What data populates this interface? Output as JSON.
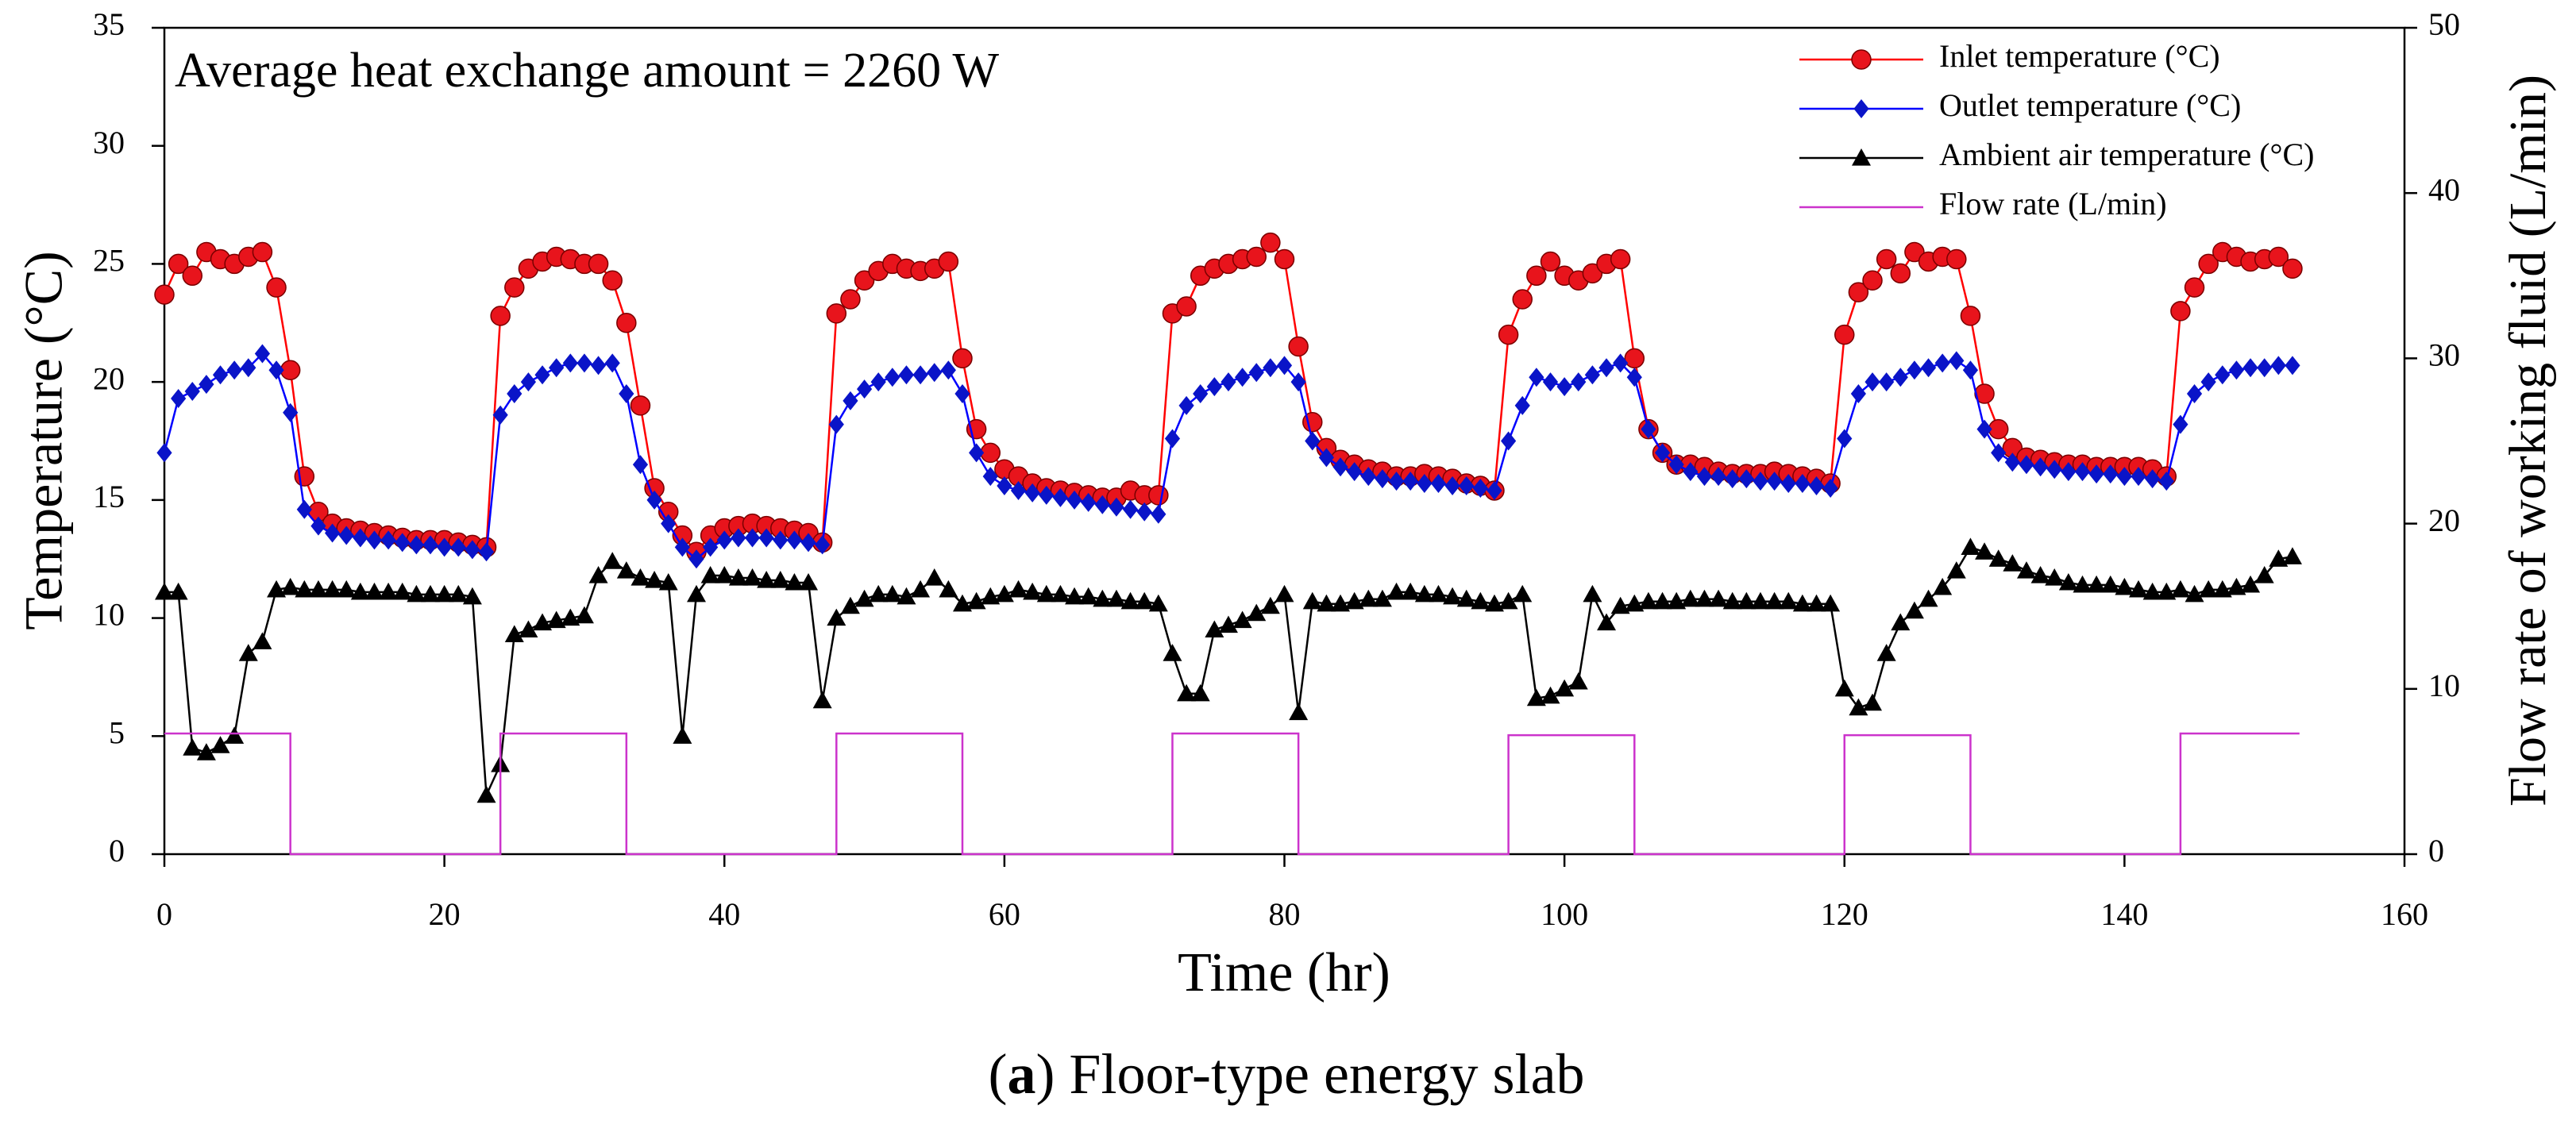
{
  "chart_data": {
    "type": "line",
    "annotation": "Average heat exchange amount = 2260 W",
    "x_label": "Time (hr)",
    "y_label": "Temperature (°C)",
    "y2_label": "Flow rate of working fluid (L/min)",
    "caption": [
      "(",
      "a",
      ") Floor-type energy slab"
    ],
    "xlim": [
      0,
      160
    ],
    "xticks": [
      0,
      20,
      40,
      60,
      80,
      100,
      120,
      140,
      160
    ],
    "ylim": [
      0,
      35
    ],
    "yticks": [
      0,
      5,
      10,
      15,
      20,
      25,
      30,
      35
    ],
    "y2lim": [
      0,
      50
    ],
    "y2ticks": [
      0,
      10,
      20,
      30,
      40,
      50
    ],
    "legend": "upper right",
    "x": [
      0,
      1,
      2,
      3,
      4,
      5,
      6,
      7,
      8,
      9,
      10,
      11,
      12,
      13,
      14,
      15,
      16,
      17,
      18,
      19,
      20,
      21,
      22,
      23,
      24,
      25,
      26,
      27,
      28,
      29,
      30,
      31,
      32,
      33,
      34,
      35,
      36,
      37,
      38,
      39,
      40,
      41,
      42,
      43,
      44,
      45,
      46,
      47,
      48,
      49,
      50,
      51,
      52,
      53,
      54,
      55,
      56,
      57,
      58,
      59,
      60,
      61,
      62,
      63,
      64,
      65,
      66,
      67,
      68,
      69,
      70,
      71,
      72,
      73,
      74,
      75,
      76,
      77,
      78,
      79,
      80,
      81,
      82,
      83,
      84,
      85,
      86,
      87,
      88,
      89,
      90,
      91,
      92,
      93,
      94,
      95,
      96,
      97,
      98,
      99,
      100,
      101,
      102,
      103,
      104,
      105,
      106,
      107,
      108,
      109,
      110,
      111,
      112,
      113,
      114,
      115,
      116,
      117,
      118,
      119,
      120,
      121,
      122,
      123,
      124,
      125,
      126,
      127,
      128,
      129,
      130,
      131,
      132,
      133,
      134,
      135,
      136,
      137,
      138,
      139,
      140,
      141,
      142,
      143,
      144,
      145,
      146,
      147,
      148,
      149,
      150,
      151,
      152
    ],
    "series": [
      {
        "name": "Inlet temperature (°C)",
        "color": "#ff0000",
        "marker": "circle",
        "marker_color": "#e8141c",
        "values": [
          23.7,
          25,
          24.5,
          25.5,
          25.2,
          25,
          25.3,
          25.5,
          24,
          20.5,
          16,
          14.5,
          14,
          13.8,
          13.7,
          13.6,
          13.5,
          13.4,
          13.3,
          13.3,
          13.3,
          13.2,
          13.1,
          13.0,
          22.8,
          24,
          24.8,
          25.1,
          25.3,
          25.2,
          25,
          25,
          24.3,
          22.5,
          19,
          15.5,
          14.5,
          13.5,
          12.8,
          13.5,
          13.8,
          13.9,
          14,
          13.9,
          13.8,
          13.7,
          13.6,
          13.2,
          22.9,
          23.5,
          24.3,
          24.7,
          25,
          24.8,
          24.7,
          24.8,
          25.1,
          21,
          18,
          17,
          16.3,
          16,
          15.7,
          15.5,
          15.4,
          15.3,
          15.2,
          15.1,
          15.1,
          15.4,
          15.2,
          15.2,
          22.9,
          23.2,
          24.5,
          24.8,
          25,
          25.2,
          25.3,
          25.9,
          25.2,
          21.5,
          18.3,
          17.2,
          16.7,
          16.5,
          16.3,
          16.2,
          16,
          16,
          16.1,
          16,
          15.9,
          15.7,
          15.6,
          15.4,
          22,
          23.5,
          24.5,
          25.1,
          24.5,
          24.3,
          24.6,
          25,
          25.2,
          21,
          18,
          17,
          16.5,
          16.5,
          16.4,
          16.2,
          16.1,
          16.1,
          16.1,
          16.2,
          16.1,
          16,
          15.9,
          15.7,
          22,
          23.8,
          24.3,
          25.2,
          24.6,
          25.5,
          25.1,
          25.3,
          25.2,
          22.8,
          19.5,
          18,
          17.2,
          16.8,
          16.7,
          16.6,
          16.5,
          16.5,
          16.4,
          16.4,
          16.4,
          16.4,
          16.3,
          16,
          23,
          24,
          25,
          25.5,
          25.3,
          25.1,
          25.2,
          25.3,
          24.8
        ]
      },
      {
        "name": "Outlet temperature (°C)",
        "color": "#0000ff",
        "marker": "diamond",
        "marker_color": "#0a14c8",
        "values": [
          17,
          19.3,
          19.6,
          19.9,
          20.3,
          20.5,
          20.6,
          21.2,
          20.5,
          18.7,
          14.6,
          13.9,
          13.6,
          13.5,
          13.4,
          13.3,
          13.3,
          13.2,
          13.1,
          13.1,
          13.0,
          13.0,
          12.9,
          12.8,
          18.6,
          19.5,
          20,
          20.3,
          20.6,
          20.8,
          20.8,
          20.7,
          20.8,
          19.5,
          16.5,
          15,
          14,
          13,
          12.5,
          13,
          13.3,
          13.4,
          13.4,
          13.4,
          13.3,
          13.3,
          13.2,
          13.1,
          18.2,
          19.2,
          19.7,
          20,
          20.2,
          20.3,
          20.3,
          20.4,
          20.5,
          19.5,
          17,
          16,
          15.6,
          15.4,
          15.3,
          15.2,
          15.1,
          15,
          14.9,
          14.8,
          14.7,
          14.6,
          14.5,
          14.4,
          17.6,
          19,
          19.5,
          19.8,
          20,
          20.2,
          20.4,
          20.6,
          20.7,
          20,
          17.5,
          16.8,
          16.4,
          16.2,
          16,
          15.9,
          15.8,
          15.8,
          15.7,
          15.7,
          15.6,
          15.6,
          15.5,
          15.4,
          17.5,
          19,
          20.2,
          20,
          19.8,
          20,
          20.3,
          20.6,
          20.8,
          20.2,
          18,
          17,
          16.5,
          16.2,
          16,
          16,
          15.9,
          15.9,
          15.8,
          15.8,
          15.7,
          15.7,
          15.6,
          15.5,
          17.6,
          19.5,
          20,
          20,
          20.2,
          20.5,
          20.6,
          20.8,
          20.9,
          20.5,
          18,
          17,
          16.6,
          16.5,
          16.4,
          16.3,
          16.2,
          16.2,
          16.1,
          16.1,
          16,
          16,
          15.9,
          15.8,
          18.2,
          19.5,
          20,
          20.3,
          20.5,
          20.6,
          20.6,
          20.7,
          20.7
        ]
      },
      {
        "name": "Ambient air temperature (°C)",
        "color": "#000000",
        "marker": "triangle",
        "marker_color": "#000000",
        "values": [
          11.1,
          11.1,
          4.5,
          4.3,
          4.6,
          5,
          8.5,
          9,
          11.2,
          11.3,
          11.2,
          11.2,
          11.2,
          11.2,
          11.1,
          11.1,
          11.1,
          11.1,
          11.0,
          11.0,
          11.0,
          11.0,
          10.9,
          2.5,
          3.8,
          9.3,
          9.5,
          9.8,
          9.9,
          10,
          10.1,
          11.8,
          12.4,
          12,
          11.7,
          11.6,
          11.5,
          5,
          11,
          11.8,
          11.8,
          11.7,
          11.7,
          11.6,
          11.6,
          11.5,
          11.5,
          6.5,
          10,
          10.5,
          10.8,
          11,
          11,
          10.9,
          11.2,
          11.7,
          11.2,
          10.6,
          10.7,
          10.9,
          11,
          11.2,
          11.1,
          11,
          11,
          10.9,
          10.9,
          10.8,
          10.8,
          10.7,
          10.7,
          10.6,
          8.5,
          6.8,
          6.8,
          9.5,
          9.7,
          9.9,
          10.2,
          10.5,
          11,
          6,
          10.7,
          10.6,
          10.6,
          10.7,
          10.8,
          10.8,
          11.1,
          11.1,
          11,
          11,
          10.9,
          10.8,
          10.7,
          10.6,
          10.7,
          11,
          6.6,
          6.7,
          7,
          7.3,
          11,
          9.8,
          10.5,
          10.6,
          10.7,
          10.7,
          10.7,
          10.8,
          10.8,
          10.8,
          10.7,
          10.7,
          10.7,
          10.7,
          10.7,
          10.6,
          10.6,
          10.6,
          7,
          6.2,
          6.4,
          8.5,
          9.8,
          10.3,
          10.8,
          11.3,
          12,
          13,
          12.8,
          12.5,
          12.3,
          12,
          11.8,
          11.7,
          11.5,
          11.4,
          11.4,
          11.4,
          11.3,
          11.2,
          11.1,
          11.1,
          11.2,
          11,
          11.2,
          11.2,
          11.3,
          11.4,
          11.8,
          12.5,
          12.6
        ]
      },
      {
        "name": "Flow rate (L/min)",
        "color": "#cc33cc",
        "axis": "y2",
        "x": [
          0,
          9,
          9,
          24,
          24,
          33,
          33,
          48,
          48,
          57,
          57,
          72,
          72,
          81,
          81,
          96,
          96,
          105,
          105,
          120,
          120,
          129,
          129,
          144,
          144,
          152.5
        ],
        "values": [
          7.3,
          7.3,
          0,
          0,
          7.3,
          7.3,
          0,
          0,
          7.3,
          7.3,
          0,
          0,
          7.3,
          7.3,
          0,
          0,
          7.2,
          7.2,
          0,
          0,
          7.2,
          7.2,
          0,
          0,
          7.3,
          7.3
        ]
      }
    ]
  }
}
